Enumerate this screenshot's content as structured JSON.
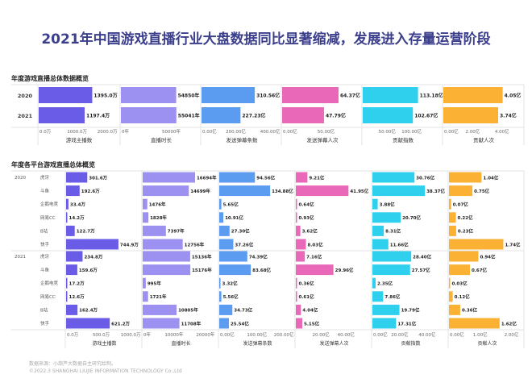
{
  "title": "2021年中国游戏直播行业大盘数据同比显著缩减，发展进入存量运营阶段",
  "footer": {
    "source": "数据来源：小葫芦大数据自主研究绘制。",
    "copyright": "©2022.3 SHANGHAI LIUJIE INFORMATION TECHNOLOGY Co.,Ltd"
  },
  "colors": [
    "#6b5ce8",
    "#9c90f0",
    "#5b9bf0",
    "#ea68b8",
    "#2fcfee",
    "#fbb234"
  ],
  "chart_data": [
    {
      "type": "bar",
      "title": "年度游戏直播总体数据概览",
      "categories": [
        "2020",
        "2021"
      ],
      "series": [
        {
          "name": "游戏主播数",
          "values": [
            "1395.0万",
            "1197.4万"
          ],
          "nums": [
            1395.0,
            1197.4
          ],
          "xlim": [
            0,
            2100
          ],
          "ticks": [
            [
              0,
              "0.0万"
            ],
            [
              1000,
              "1000.0万"
            ],
            [
              2000,
              "2000.0万"
            ]
          ]
        },
        {
          "name": "直播时长",
          "values": [
            "54850年",
            "55041年"
          ],
          "nums": [
            54850,
            55041
          ],
          "xlim": [
            0,
            80000
          ],
          "ticks": [
            [
              0,
              "0年"
            ],
            [
              50000,
              "50000年"
            ]
          ]
        },
        {
          "name": "发送弹幕条数",
          "values": [
            "310.56亿",
            "227.23亿"
          ],
          "nums": [
            310.56,
            227.23
          ],
          "xlim": [
            0,
            470
          ],
          "ticks": [
            [
              0,
              "0.00亿"
            ],
            [
              200,
              "200.00亿"
            ],
            [
              400,
              "400.00亿"
            ]
          ]
        },
        {
          "name": "发送弹幕人次",
          "values": [
            "64.37亿",
            "47.79亿"
          ],
          "nums": [
            64.37,
            47.79
          ],
          "xlim": [
            0,
            92
          ],
          "ticks": [
            [
              0,
              "0.00亿"
            ],
            [
              50,
              "50.00亿"
            ]
          ]
        },
        {
          "name": "贡献指数",
          "values": [
            "113.18亿",
            "102.67亿"
          ],
          "nums": [
            113.18,
            102.67
          ],
          "xlim": [
            0,
            165
          ],
          "ticks": [
            [
              50,
              "50.00亿"
            ],
            [
              100,
              "100.00亿"
            ]
          ]
        },
        {
          "name": "贡献人次",
          "values": [
            "4.05亿",
            "3.74亿"
          ],
          "nums": [
            4.05,
            3.74
          ],
          "xlim": [
            0,
            5.5
          ],
          "ticks": [
            [
              0,
              "0.00亿"
            ],
            [
              2,
              "2.00亿"
            ],
            [
              4,
              "4.00亿"
            ]
          ]
        }
      ]
    },
    {
      "type": "bar",
      "title": "年度各平台游戏直播总体概览",
      "groups": [
        "2020",
        "2021"
      ],
      "categories": [
        "虎牙",
        "斗鱼",
        "企鹅电竞",
        "网易CC",
        "B站",
        "快手"
      ],
      "series": [
        {
          "name": "游戏主播数",
          "values": [
            [
              "301.6万",
              "192.6万",
              "33.4万",
              "14.2万",
              "122.7万",
              "744.9万"
            ],
            [
              "234.8万",
              "159.6万",
              "17.2万",
              "12.6万",
              "162.4万",
              "621.2万"
            ]
          ],
          "nums": [
            [
              301.6,
              192.6,
              33.4,
              14.2,
              122.7,
              744.9
            ],
            [
              234.8,
              159.6,
              17.2,
              12.6,
              162.4,
              621.2
            ]
          ],
          "xlim": [
            0,
            1090
          ],
          "ticks": [
            [
              0,
              "0.0万"
            ],
            [
              500,
              "500.0万"
            ],
            [
              1000,
              "1000.0万"
            ]
          ]
        },
        {
          "name": "直播时长",
          "values": [
            [
              "16694年",
              "14699年",
              "1476年",
              "1828年",
              "7397年",
              "12756年"
            ],
            [
              "15136年",
              "15176年",
              "995年",
              "1721年",
              "10805年",
              "11708年"
            ]
          ],
          "nums": [
            [
              16694,
              14699,
              1476,
              1828,
              7397,
              12756
            ],
            [
              15136,
              15176,
              995,
              1721,
              10805,
              11708
            ]
          ],
          "xlim": [
            0,
            24400
          ],
          "ticks": [
            [
              0,
              "0年"
            ],
            [
              10000,
              "10000年"
            ],
            [
              20000,
              "20000年"
            ]
          ]
        },
        {
          "name": "发送弹幕条数",
          "values": [
            [
              "94.56亿",
              "134.88亿",
              "5.65亿",
              "10.91亿",
              "27.30亿",
              "37.26亿"
            ],
            [
              "74.39亿",
              "83.68亿",
              "3.32亿",
              "5.56亿",
              "34.73亿",
              "25.54亿"
            ]
          ],
          "nums": [
            [
              94.56,
              134.88,
              5.65,
              10.91,
              27.3,
              37.26
            ],
            [
              74.39,
              83.68,
              3.32,
              5.56,
              34.73,
              25.54
            ]
          ],
          "xlim": [
            0,
            203
          ],
          "ticks": [
            [
              0,
              "0.00亿"
            ],
            [
              100,
              "100.00亿"
            ],
            [
              200,
              "200.00亿"
            ]
          ]
        },
        {
          "name": "发送弹幕人次",
          "values": [
            [
              "9.21亿",
              "41.95亿",
              "0.64亿",
              "0.93亿",
              "3.62亿",
              "8.03亿"
            ],
            [
              "7.16亿",
              "29.96亿",
              "0.36亿",
              "0.61亿",
              "4.04亿",
              "5.15亿"
            ]
          ],
          "nums": [
            [
              9.21,
              41.95,
              0.64,
              0.93,
              3.62,
              8.03
            ],
            [
              7.16,
              29.96,
              0.36,
              0.61,
              4.04,
              5.15
            ]
          ],
          "xlim": [
            0,
            61
          ],
          "ticks": [
            [
              20,
              "20.00亿"
            ],
            [
              40,
              "40.00亿"
            ]
          ]
        },
        {
          "name": "贡献指数",
          "values": [
            [
              "30.76亿",
              "38.37亿",
              "3.88亿",
              "20.70亿",
              "8.31亿",
              "11.66亿"
            ],
            [
              "28.40亿",
              "27.57亿",
              "2.35亿",
              "7.86亿",
              "19.79亿",
              "17.31亿"
            ]
          ],
          "nums": [
            [
              30.76,
              38.37,
              3.88,
              20.7,
              8.31,
              11.66
            ],
            [
              28.4,
              27.57,
              2.35,
              7.86,
              19.79,
              17.31
            ]
          ],
          "xlim": [
            0,
            56
          ],
          "ticks": [
            [
              0,
              "0.00亿"
            ],
            [
              20,
              "20.00亿"
            ],
            [
              40,
              "40.00亿"
            ]
          ]
        },
        {
          "name": "贡献人次",
          "values": [
            [
              "1.04亿",
              "0.75亿",
              "0.07亿",
              "0.22亿",
              "0.23亿",
              "1.74亿"
            ],
            [
              "0.94亿",
              "0.67亿",
              "0.03亿",
              "0.12亿",
              "0.36亿",
              "1.62亿"
            ]
          ],
          "nums": [
            [
              1.04,
              0.75,
              0.07,
              0.22,
              0.23,
              1.74
            ],
            [
              0.94,
              0.67,
              0.03,
              0.12,
              0.36,
              1.62
            ]
          ],
          "xlim": [
            0,
            2.45
          ],
          "ticks": [
            [
              0,
              "0.00亿"
            ],
            [
              1,
              "1.00亿"
            ],
            [
              2,
              "2.00亿"
            ]
          ]
        }
      ]
    }
  ]
}
